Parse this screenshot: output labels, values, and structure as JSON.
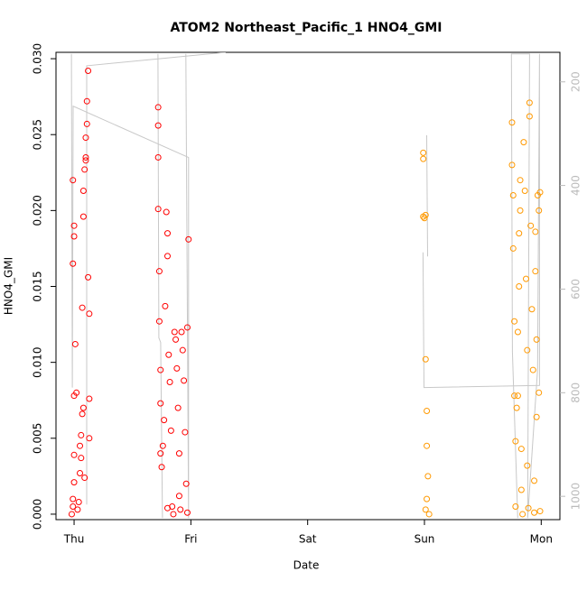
{
  "chart_data": {
    "type": "scatter",
    "title": "ATOM2 Northeast_Pacific_1 HNO4_GMI",
    "x_label": "Date",
    "y_label": "HNO4_GMI",
    "xlim": [
      -0.155,
      4.16
    ],
    "xticks": [
      {
        "value": 0,
        "label": "Thu"
      },
      {
        "value": 1,
        "label": "Fri"
      },
      {
        "value": 2,
        "label": "Sat"
      },
      {
        "value": 3,
        "label": "Sun"
      },
      {
        "value": 4,
        "label": "Mon"
      }
    ],
    "ylim": [
      -0.00036,
      0.03042
    ],
    "yticks": [
      {
        "value": 0,
        "label": "0.000"
      },
      0.005,
      {
        "value": 0.01,
        "label": "0.010"
      },
      0.015,
      {
        "value": 0.02,
        "label": "0.020"
      },
      0.025,
      {
        "value": 0.03,
        "label": "0.030"
      }
    ],
    "y2lim": [
      1045,
      143
    ],
    "y2ticks": [
      200,
      400,
      600,
      800,
      1000
    ],
    "series": [
      {
        "color": "#ff0000",
        "x": [
          -0.02,
          -0.01,
          -0.01,
          0,
          0,
          0,
          -0.01,
          0,
          0,
          -0.01,
          0.01,
          0.02,
          0.03,
          0.04,
          0.05,
          0.05,
          0.06,
          0.06,
          0.07,
          0.08,
          0.07,
          0.08,
          0.08,
          0.09,
          0.1,
          0.1,
          0.11,
          0.11,
          0.12,
          0.12,
          0.13,
          0.13,
          0.13,
          0.09,
          0.1,
          0.72,
          0.72,
          0.72,
          0.72,
          0.73,
          0.73,
          0.74,
          0.74,
          0.74,
          0.75,
          0.76,
          0.78,
          0.79,
          0.8,
          0.8,
          0.81,
          0.82,
          0.83,
          0.84,
          0.85,
          0.86,
          0.87,
          0.88,
          0.89,
          0.9,
          0.9,
          0.91,
          0.92,
          0.93,
          0.94,
          0.95,
          0.96,
          0.97,
          0.98,
          0.97,
          0.8,
          0.77
        ],
        "values": [
          0.0,
          0.0005,
          0.001,
          0.0021,
          0.0039,
          0.0078,
          0.0165,
          0.0183,
          0.019,
          0.022,
          0.0112,
          0.008,
          0.0003,
          0.0008,
          0.0027,
          0.0045,
          0.0052,
          0.0037,
          0.0066,
          0.007,
          0.0136,
          0.0196,
          0.0213,
          0.0227,
          0.0235,
          0.0248,
          0.0257,
          0.0272,
          0.0292,
          0.0156,
          0.0132,
          0.0076,
          0.005,
          0.0024,
          0.0233,
          0.0268,
          0.0256,
          0.0235,
          0.0201,
          0.016,
          0.0127,
          0.0095,
          0.0073,
          0.004,
          0.0031,
          0.0045,
          0.0137,
          0.0199,
          0.0185,
          0.017,
          0.0105,
          0.0087,
          0.0055,
          0.0005,
          0.0,
          0.012,
          0.0115,
          0.0096,
          0.007,
          0.004,
          0.0012,
          0.0003,
          0.012,
          0.0108,
          0.0088,
          0.0054,
          0.002,
          0.0001,
          0.0181,
          0.0123,
          0.0004,
          0.0062
        ]
      },
      {
        "color": "#ff9900",
        "x": [
          2.99,
          2.99,
          2.99,
          3.0,
          3.01,
          3.01,
          3.02,
          3.02,
          3.03,
          3.02,
          3.01,
          3.04,
          3.75,
          3.75,
          3.76,
          3.76,
          3.77,
          3.77,
          3.78,
          3.78,
          3.79,
          3.8,
          3.8,
          3.81,
          3.81,
          3.82,
          3.82,
          3.83,
          3.83,
          3.84,
          3.85,
          3.86,
          3.87,
          3.88,
          3.88,
          3.89,
          3.9,
          3.9,
          3.91,
          3.92,
          3.93,
          3.94,
          3.94,
          3.95,
          3.95,
          3.96,
          3.96,
          3.97,
          3.98,
          3.99,
          3.98,
          3.99
        ],
        "values": [
          0.0238,
          0.0234,
          0.0196,
          0.0195,
          0.0197,
          0.0102,
          0.0068,
          0.0045,
          0.0025,
          0.001,
          0.0003,
          0.0,
          0.0258,
          0.023,
          0.021,
          0.0175,
          0.0127,
          0.0078,
          0.0048,
          0.0005,
          0.007,
          0.0078,
          0.012,
          0.015,
          0.0185,
          0.02,
          0.022,
          0.0043,
          0.0016,
          0.0,
          0.0245,
          0.0213,
          0.0155,
          0.0108,
          0.0032,
          0.0004,
          0.0271,
          0.0262,
          0.019,
          0.0135,
          0.0095,
          0.0022,
          0.0001,
          0.0186,
          0.016,
          0.0115,
          0.0064,
          0.021,
          0.02,
          0.0212,
          0.008,
          0.0002
        ]
      },
      {
        "type": "line",
        "axis": "y2",
        "color": "#c8c8c8",
        "x": [
          -0.023,
          -0.015,
          -0.008,
          0.98,
          0.98,
          0.957,
          null,
          0.108,
          0.108,
          1.297,
          null,
          0.718,
          0.726,
          0.741,
          0.757,
          null,
          2.988,
          2.996,
          3.985,
          3.985,
          3.969,
          3.884,
          3.9,
          3.745,
          3.753,
          3.799,
          null,
          3.019,
          3.027
        ],
        "values": [
          146,
          790,
          247,
          346,
          1042,
          146,
          null,
          1016,
          169,
          143,
          null,
          146,
          694,
          703,
          1042,
          null,
          529,
          790,
          786,
          146,
          755,
          1042,
          146,
          146,
          720,
          1042,
          null,
          303,
          537
        ]
      }
    ]
  }
}
